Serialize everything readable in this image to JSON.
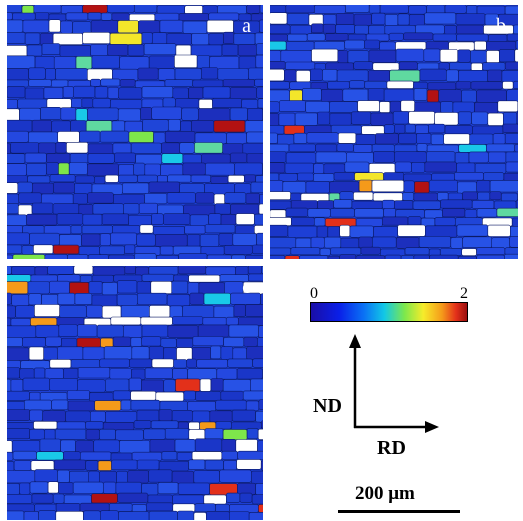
{
  "panels": [
    {
      "id": "a",
      "label": "a",
      "seed": 11
    },
    {
      "id": "b",
      "label": "b",
      "seed": 29
    },
    {
      "id": "c",
      "label": "c",
      "seed": 47
    }
  ],
  "colorbar": {
    "min_label": "0",
    "max_label": "2",
    "colors": [
      "#1a0ea6",
      "#0a1fe8",
      "#0a72f5",
      "#12c8e6",
      "#7de84c",
      "#f6ec2a",
      "#f59a1a",
      "#e3301a",
      "#9a0f0f"
    ]
  },
  "axes": {
    "vertical_label": "ND",
    "horizontal_label": "RD"
  },
  "scale_bar": {
    "label": "200 μm"
  },
  "colors": {
    "grain_base": [
      "#1d3fd6",
      "#1a36c8",
      "#2448e0",
      "#1c2fbd",
      "#2752e6",
      "#1f45d8"
    ],
    "highlights": [
      "#19c9e8",
      "#7ee64b",
      "#f3e62a",
      "#f59a1a",
      "#e3301a",
      "#b31212",
      "#5fd9a0"
    ],
    "unindexed": "#ffffff",
    "boundary": "#0b1a66"
  }
}
